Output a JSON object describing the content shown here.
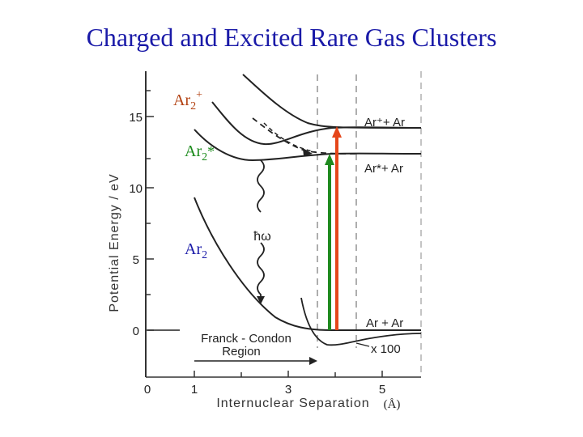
{
  "title": "Charged and Excited Rare Gas Clusters",
  "axes": {
    "y_label": "Potential Energy / eV",
    "x_label": "Internuclear Separation",
    "x_unit": "(Å)",
    "y_ticks": [
      "0",
      "5",
      "10",
      "15"
    ],
    "x_ticks": [
      "0",
      "1",
      "3",
      "5"
    ]
  },
  "curves": {
    "ion": {
      "label": "Ar",
      "sub": "2",
      "sup": "+",
      "color": "#b24010"
    },
    "excimer": {
      "label": "Ar",
      "sub": "2",
      "sup": "*",
      "color": "#1a8a1a"
    },
    "ground": {
      "label": "Ar",
      "sub": "2",
      "color": "#1a1aa8"
    }
  },
  "asymptotes": {
    "ion": "Ar⁺+ Ar",
    "excited": "Ar*+ Ar",
    "ground": "Ar + Ar"
  },
  "annotations": {
    "photon": "ħω",
    "franck_condon_line1": "Franck - Condon",
    "franck_condon_line2": "Region",
    "magnification": "x 100"
  },
  "arrows": {
    "green_color": "#1f8a1f",
    "red_color": "#e5461a"
  }
}
